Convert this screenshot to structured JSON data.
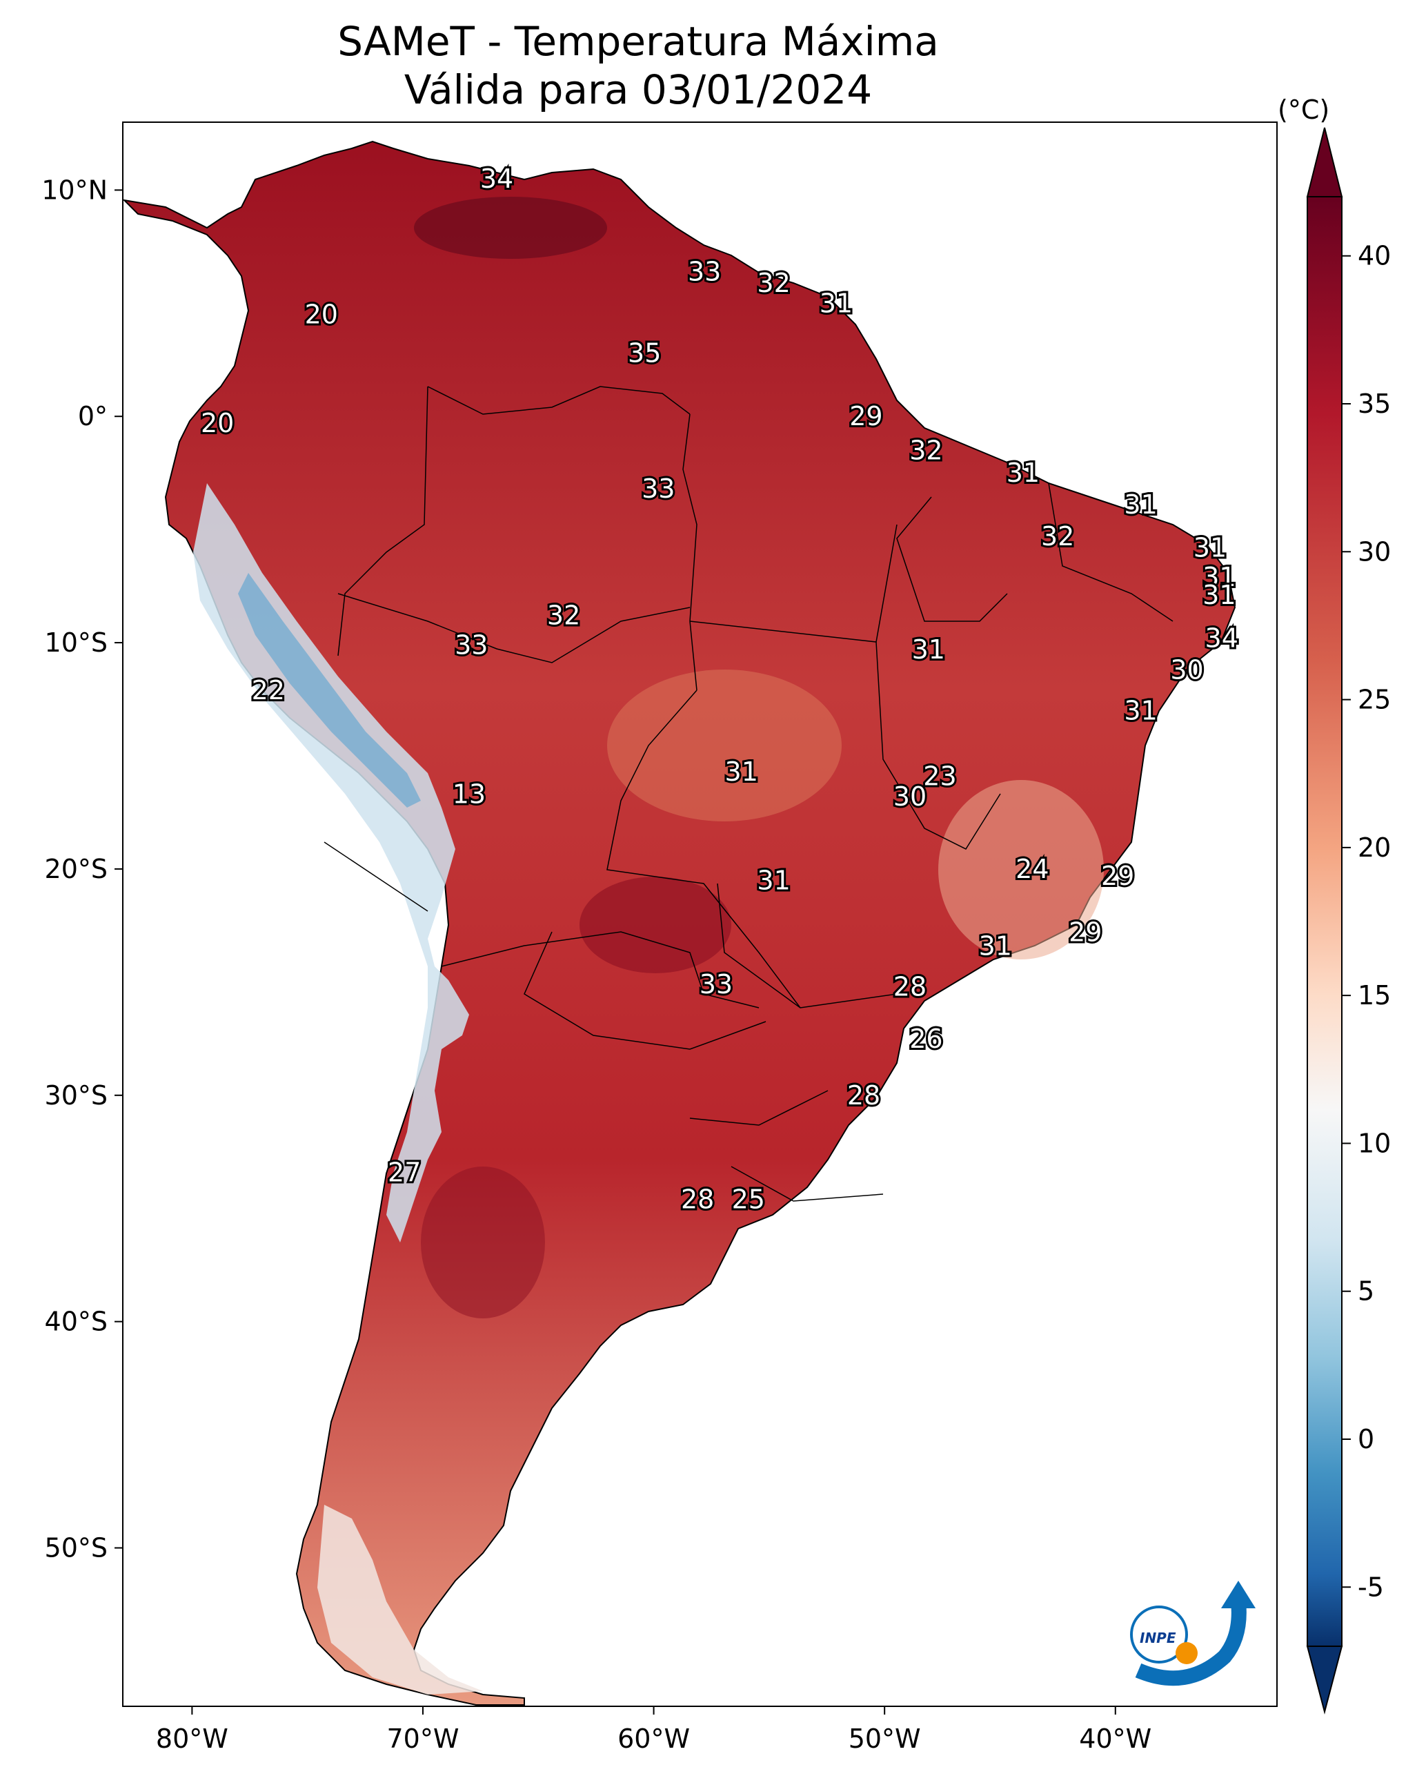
{
  "title": {
    "line1": "SAMeT - Temperatura Máxima",
    "line2": "Válida para 03/01/2024"
  },
  "map": {
    "region": "South America",
    "extent": {
      "lon": [
        -83,
        -33
      ],
      "lat": [
        -57,
        13
      ]
    },
    "lat_ticks": [
      "10°N",
      "0°",
      "10°S",
      "20°S",
      "30°S",
      "40°S",
      "50°S"
    ],
    "lon_ticks": [
      "80°W",
      "70°W",
      "60°W",
      "50°W",
      "40°W"
    ],
    "colorscale_colors": [
      "#08306b",
      "#2166ac",
      "#4393c3",
      "#92c5de",
      "#d1e5f0",
      "#f7f7f7",
      "#fddbc7",
      "#f4a582",
      "#d6604d",
      "#b2182b",
      "#67001f"
    ]
  },
  "labels": [
    {
      "v": "34",
      "lon": -66.8,
      "lat": 10.5
    },
    {
      "v": "33",
      "lon": -57.8,
      "lat": 6.4
    },
    {
      "v": "32",
      "lon": -54.8,
      "lat": 5.9
    },
    {
      "v": "31",
      "lon": -52.1,
      "lat": 5.0
    },
    {
      "v": "20",
      "lon": -74.4,
      "lat": 4.5
    },
    {
      "v": "35",
      "lon": -60.4,
      "lat": 2.8
    },
    {
      "v": "29",
      "lon": -50.8,
      "lat": 0.0
    },
    {
      "v": "20",
      "lon": -78.9,
      "lat": -0.3
    },
    {
      "v": "32",
      "lon": -48.2,
      "lat": -1.5
    },
    {
      "v": "31",
      "lon": -44.0,
      "lat": -2.5
    },
    {
      "v": "33",
      "lon": -59.8,
      "lat": -3.2
    },
    {
      "v": "31",
      "lon": -38.9,
      "lat": -3.9
    },
    {
      "v": "32",
      "lon": -42.5,
      "lat": -5.3
    },
    {
      "v": "31",
      "lon": -35.9,
      "lat": -5.8
    },
    {
      "v": "31",
      "lon": -35.5,
      "lat": -7.1
    },
    {
      "v": "31",
      "lon": -35.5,
      "lat": -7.9
    },
    {
      "v": "32",
      "lon": -63.9,
      "lat": -8.8
    },
    {
      "v": "34",
      "lon": -35.4,
      "lat": -9.8
    },
    {
      "v": "33",
      "lon": -67.9,
      "lat": -10.1
    },
    {
      "v": "31",
      "lon": -48.1,
      "lat": -10.3
    },
    {
      "v": "30",
      "lon": -36.9,
      "lat": -11.2
    },
    {
      "v": "22",
      "lon": -76.7,
      "lat": -12.1
    },
    {
      "v": "31",
      "lon": -38.9,
      "lat": -13.0
    },
    {
      "v": "31",
      "lon": -56.2,
      "lat": -15.7
    },
    {
      "v": "23",
      "lon": -47.6,
      "lat": -15.9
    },
    {
      "v": "30",
      "lon": -48.9,
      "lat": -16.8
    },
    {
      "v": "13",
      "lon": -68.0,
      "lat": -16.7
    },
    {
      "v": "24",
      "lon": -43.6,
      "lat": -20.0
    },
    {
      "v": "29",
      "lon": -39.9,
      "lat": -20.3
    },
    {
      "v": "31",
      "lon": -54.8,
      "lat": -20.5
    },
    {
      "v": "29",
      "lon": -41.3,
      "lat": -22.8
    },
    {
      "v": "31",
      "lon": -45.2,
      "lat": -23.4
    },
    {
      "v": "33",
      "lon": -57.3,
      "lat": -25.1
    },
    {
      "v": "28",
      "lon": -48.9,
      "lat": -25.2
    },
    {
      "v": "26",
      "lon": -48.2,
      "lat": -27.5
    },
    {
      "v": "28",
      "lon": -50.9,
      "lat": -30.0
    },
    {
      "v": "27",
      "lon": -70.8,
      "lat": -33.4
    },
    {
      "v": "28",
      "lon": -58.1,
      "lat": -34.6
    },
    {
      "v": "25",
      "lon": -55.9,
      "lat": -34.6
    }
  ],
  "colorbar": {
    "unit": "(°C)",
    "ticks": [
      "40",
      "35",
      "30",
      "25",
      "20",
      "15",
      "10",
      "5",
      "0",
      "-5"
    ]
  },
  "logo": {
    "text": "INPE"
  }
}
